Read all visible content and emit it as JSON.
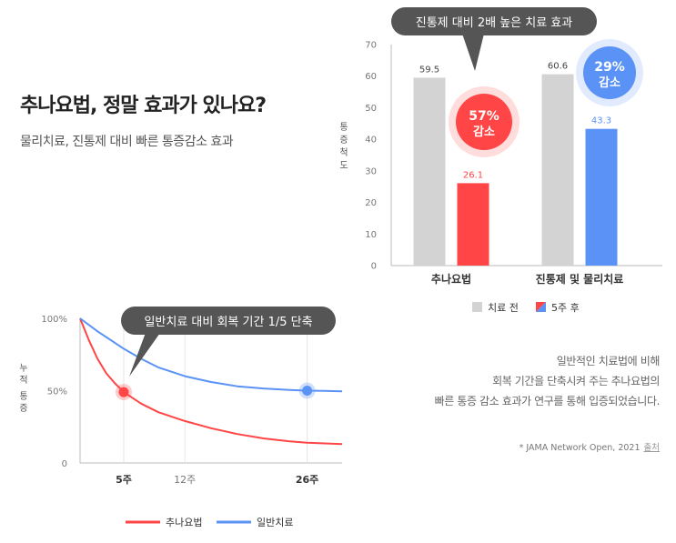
{
  "header": {
    "title": "추나요법, 정말 효과가 있나요?",
    "subtitle": "물리치료, 진통제 대비 빠른 통증감소 효과"
  },
  "note": {
    "lines": [
      "일반적인 치료법에 비해",
      "회복 기간을 단축시켜 주는 추나요법의",
      "빠른 통증 감소 효과가 연구를 통해 입증되었습니다."
    ],
    "source": "* JAMA Network Open, 2021",
    "source_link": "출처"
  },
  "colors": {
    "gray_bar": "#d3d3d3",
    "red": "#ff4545",
    "blue": "#5b92f6",
    "callout": "#555555"
  },
  "chart_data": [
    {
      "type": "bar",
      "categories": [
        "추나요법",
        "진통제 및 물리치료"
      ],
      "series": [
        {
          "name": "치료 전",
          "values": [
            59.5,
            60.6
          ]
        },
        {
          "name": "5주 후",
          "values": [
            26.1,
            43.3
          ]
        }
      ],
      "data_labels": [
        [
          "59.5",
          "60.6"
        ],
        [
          "26.1",
          "43.3"
        ]
      ],
      "ylabel": "통증척도",
      "ylim": [
        0,
        70
      ],
      "yticks": [
        0,
        10,
        20,
        30,
        40,
        50,
        60,
        70
      ],
      "grid": false,
      "legend": "bottom",
      "callout": "진통제 대비 2배 높은 치료 효과",
      "badges": [
        {
          "line1": "57%",
          "line2": "감소",
          "color": "red"
        },
        {
          "line1": "29%",
          "line2": "감소",
          "color": "blue"
        }
      ]
    },
    {
      "type": "line",
      "ylabel": "누적통증",
      "ytick_labels": [
        "0",
        "50%",
        "100%"
      ],
      "xtick_labels": [
        "5주",
        "12주",
        "26주"
      ],
      "xticks": [
        5,
        12,
        26
      ],
      "xlim": [
        0,
        30
      ],
      "ylim": [
        0,
        100
      ],
      "series": [
        {
          "name": "추나요법",
          "x": [
            0,
            1,
            2,
            3,
            4,
            5,
            7,
            9,
            12,
            15,
            18,
            21,
            24,
            26,
            28,
            30
          ],
          "y": [
            100,
            85,
            72,
            62,
            55,
            49,
            41,
            35,
            29,
            24,
            20,
            17,
            15,
            14,
            13.5,
            13
          ]
        },
        {
          "name": "일반치료",
          "x": [
            0,
            2,
            4,
            5,
            7,
            9,
            12,
            15,
            18,
            21,
            24,
            26,
            28,
            30
          ],
          "y": [
            100,
            91,
            83,
            79,
            72,
            66,
            60,
            56,
            53,
            51.5,
            50.5,
            50,
            49.8,
            49.5
          ]
        }
      ],
      "markers": [
        {
          "series": "추나요법",
          "x": 5,
          "y": 49
        },
        {
          "series": "일반치료",
          "x": 26,
          "y": 50
        }
      ],
      "callout": "일반치료 대비 회복 기간 1/5 단축",
      "legend": "bottom"
    }
  ]
}
